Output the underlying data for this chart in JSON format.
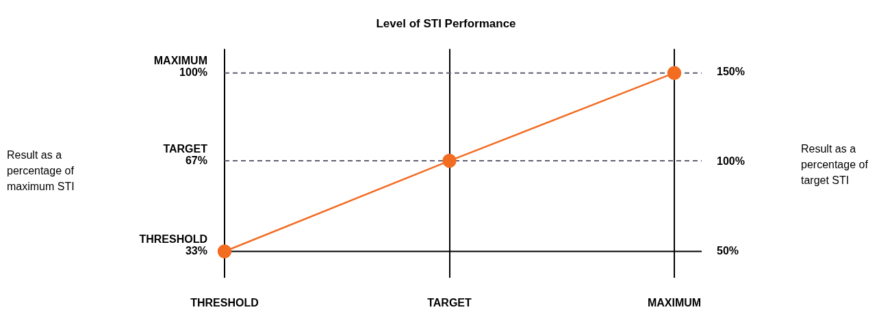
{
  "chart_data": {
    "type": "line",
    "title": "Level of STI Performance",
    "categories": [
      "THRESHOLD",
      "TARGET",
      "MAXIMUM"
    ],
    "series": [
      {
        "color": "#f26c22",
        "values": [
          33,
          67,
          100
        ]
      }
    ],
    "ylim": [
      23,
      109
    ],
    "yticks": [
      {
        "value": 33,
        "label": "33%"
      },
      {
        "value": 67,
        "label": "67%"
      },
      {
        "value": 100,
        "label": "100%"
      }
    ],
    "annotations": [
      "THRESHOLD",
      "TARGET",
      "MAXIMUM",
      "Result as a percentage of maximum STI",
      "Result as a percentage of target STI"
    ],
    "y2lim": [
      35,
      163
    ],
    "y2ticks": [
      {
        "value": 50,
        "label": "50%"
      },
      {
        "value": 100,
        "label": "100%"
      },
      {
        "value": 150,
        "label": "150%"
      }
    ],
    "ref_lines": [
      {
        "axis": "y",
        "value": 100,
        "color": "#5f5f73",
        "line_style": "dashed"
      },
      {
        "axis": "y",
        "value": 67,
        "color": "#5f5f73",
        "line_style": "dashed"
      },
      {
        "axis": "y",
        "value": 33,
        "color": "#000000",
        "line_style": "solid"
      }
    ],
    "grid": "x",
    "legend": false,
    "marker": "circle",
    "line_style": "solid"
  }
}
